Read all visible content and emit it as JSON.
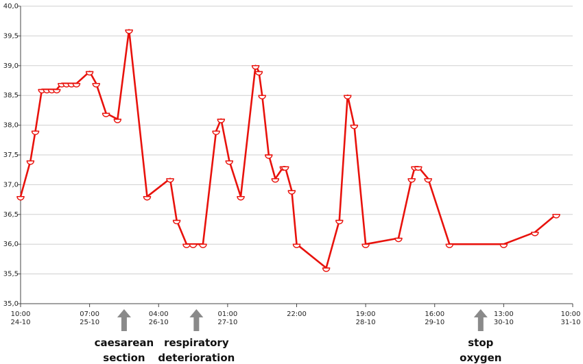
{
  "chart_data": {
    "type": "line",
    "ylim": [
      35.0,
      40.0
    ],
    "yticks": [
      "35,0",
      "35,5",
      "36,0",
      "36,5",
      "37,0",
      "37,5",
      "38,0",
      "38,5",
      "39,0",
      "39,5",
      "40,0"
    ],
    "grid": "horizontal",
    "xticks": [
      {
        "time": "10:00",
        "date": "24-10",
        "t": 0
      },
      {
        "time": "07:00",
        "date": "25-10",
        "t": 21
      },
      {
        "time": "04:00",
        "date": "26-10",
        "t": 42
      },
      {
        "time": "01:00",
        "date": "27-10",
        "t": 63
      },
      {
        "time": "22:00",
        "date": "",
        "t": 84
      },
      {
        "time": "19:00",
        "date": "28-10",
        "t": 105
      },
      {
        "time": "16:00",
        "date": "29-10",
        "t": 126
      },
      {
        "time": "13:00",
        "date": "30-10",
        "t": 147
      },
      {
        "time": "10:00",
        "date": "31-10",
        "t": 168
      }
    ],
    "x_unit": "hours since 10:00 24-10",
    "series": [
      {
        "color": "#e8120c",
        "points": [
          [
            0,
            36.8
          ],
          [
            3,
            37.4
          ],
          [
            4.5,
            37.9
          ],
          [
            6.5,
            38.6
          ],
          [
            8,
            38.6
          ],
          [
            9.5,
            38.6
          ],
          [
            11,
            38.6
          ],
          [
            12.5,
            38.7
          ],
          [
            14,
            38.7
          ],
          [
            15.5,
            38.7
          ],
          [
            17,
            38.7
          ],
          [
            21,
            38.9
          ],
          [
            23,
            38.7
          ],
          [
            26,
            38.2
          ],
          [
            29.5,
            38.1
          ],
          [
            33,
            39.6
          ],
          [
            38.5,
            36.8
          ],
          [
            45.5,
            37.1
          ],
          [
            47.5,
            36.4
          ],
          [
            50.5,
            36.0
          ],
          [
            52.5,
            36.0
          ],
          [
            55.5,
            36.0
          ],
          [
            59.5,
            37.9
          ],
          [
            61,
            38.1
          ],
          [
            63.5,
            37.4
          ],
          [
            67,
            36.8
          ],
          [
            71.5,
            39.0
          ],
          [
            72.5,
            38.9
          ],
          [
            73.5,
            38.5
          ],
          [
            75.5,
            37.5
          ],
          [
            77.5,
            37.1
          ],
          [
            80,
            37.3
          ],
          [
            80.5,
            37.3
          ],
          [
            82.5,
            36.9
          ],
          [
            84,
            36.0
          ],
          [
            93,
            35.6
          ],
          [
            97,
            36.4
          ],
          [
            99.5,
            38.5
          ],
          [
            101.5,
            38.0
          ],
          [
            105,
            36.0
          ],
          [
            115,
            36.1
          ],
          [
            119,
            37.1
          ],
          [
            120,
            37.3
          ],
          [
            121,
            37.3
          ],
          [
            124,
            37.1
          ],
          [
            130.5,
            36.0
          ],
          [
            147,
            36.0
          ],
          [
            156.5,
            36.2
          ],
          [
            163,
            36.5
          ]
        ]
      }
    ],
    "annotations": [
      {
        "lines": [
          "caesarean",
          "section"
        ],
        "t": 31.5
      },
      {
        "lines": [
          "respiratory",
          "deterioration"
        ],
        "t": 53.5
      },
      {
        "lines": [
          "stop",
          "oxygen"
        ],
        "t": 140
      }
    ]
  }
}
